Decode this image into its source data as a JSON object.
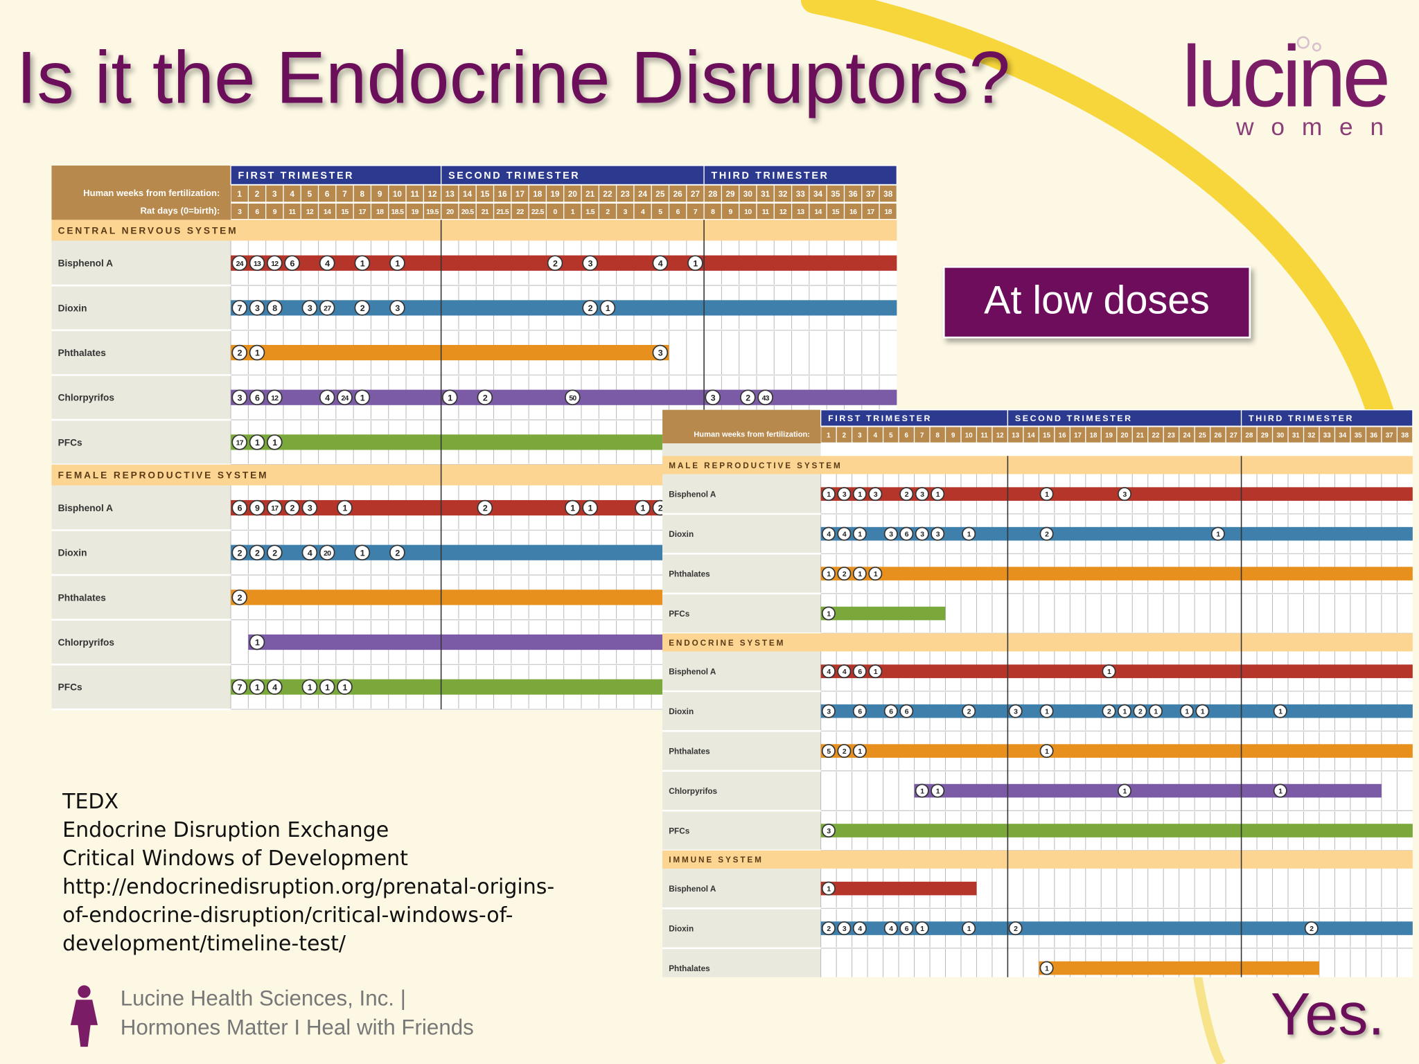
{
  "header": {
    "title": "Is it the Endocrine Disruptors?",
    "logo": "lucine",
    "logo_sub": "women"
  },
  "callout": "At low doses",
  "citation": [
    "TEDX",
    "Endocrine Disruption Exchange",
    "Critical Windows of Development",
    "http://endocrinedisruption.org/prenatal-origins-",
    "of-endocrine-disruption/critical-windows-of-",
    "development/timeline-test/"
  ],
  "footer": {
    "line1": "Lucine Health Sciences, Inc. |",
    "line2": "Hormones Matter I Heal with Friends"
  },
  "answer": "Yes.",
  "chart_data": [
    {
      "type": "timeline",
      "trimesters": [
        {
          "name": "FIRST TRIMESTER",
          "start": 1,
          "end": 12
        },
        {
          "name": "SECOND TRIMESTER",
          "start": 13,
          "end": 27
        },
        {
          "name": "THIRD TRIMESTER",
          "start": 28,
          "end": 38
        }
      ],
      "weeks_label": "Human weeks from fertilization:",
      "weeks": [
        1,
        2,
        3,
        4,
        5,
        6,
        7,
        8,
        9,
        10,
        11,
        12,
        13,
        14,
        15,
        16,
        17,
        18,
        19,
        20,
        21,
        22,
        23,
        24,
        25,
        26,
        27,
        28,
        29,
        30,
        31,
        32,
        33,
        34,
        35,
        36,
        37,
        38
      ],
      "rat_label": "Rat days (0=birth):",
      "rat_days": [
        3,
        6,
        9,
        11,
        12,
        14,
        15,
        17,
        18,
        18.5,
        19,
        19.5,
        20,
        20.5,
        21,
        21.5,
        22,
        22.5,
        0,
        1,
        1.5,
        2,
        3,
        4,
        5,
        6,
        7,
        8,
        9,
        10,
        11,
        12,
        13,
        14,
        15,
        16,
        17,
        18
      ],
      "sections": [
        {
          "name": "CENTRAL NERVOUS SYSTEM",
          "rows": [
            {
              "name": "Bisphenol A",
              "color": "#b5352a",
              "start": 1,
              "end": 38,
              "markers": [
                {
                  "week": 1,
                  "label": 24
                },
                {
                  "week": 2,
                  "label": 13
                },
                {
                  "week": 3,
                  "label": 12
                },
                {
                  "week": 4,
                  "label": 6
                },
                {
                  "week": 6,
                  "label": 4
                },
                {
                  "week": 8,
                  "label": 1
                },
                {
                  "week": 10,
                  "label": 1
                },
                {
                  "week": 19,
                  "label": 2
                },
                {
                  "week": 21,
                  "label": 3
                },
                {
                  "week": 25,
                  "label": 4
                },
                {
                  "week": 27,
                  "label": 1
                }
              ]
            },
            {
              "name": "Dioxin",
              "color": "#3f7fab",
              "start": 1,
              "end": 38,
              "markers": [
                {
                  "week": 1,
                  "label": 7
                },
                {
                  "week": 2,
                  "label": 3
                },
                {
                  "week": 3,
                  "label": 8
                },
                {
                  "week": 5,
                  "label": 3
                },
                {
                  "week": 6,
                  "label": 27
                },
                {
                  "week": 8,
                  "label": 2
                },
                {
                  "week": 10,
                  "label": 3
                },
                {
                  "week": 21,
                  "label": 2
                },
                {
                  "week": 22,
                  "label": 1
                }
              ]
            },
            {
              "name": "Phthalates",
              "color": "#e8901e",
              "start": 1,
              "end": 25,
              "markers": [
                {
                  "week": 1,
                  "label": 2
                },
                {
                  "week": 2,
                  "label": 1
                },
                {
                  "week": 25,
                  "label": 3
                }
              ]
            },
            {
              "name": "Chlorpyrifos",
              "color": "#7b5aa6",
              "start": 1,
              "end": 38,
              "markers": [
                {
                  "week": 1,
                  "label": 3
                },
                {
                  "week": 2,
                  "label": 6
                },
                {
                  "week": 3,
                  "label": 12
                },
                {
                  "week": 6,
                  "label": 4
                },
                {
                  "week": 7,
                  "label": 24
                },
                {
                  "week": 8,
                  "label": 1
                },
                {
                  "week": 13,
                  "label": 1
                },
                {
                  "week": 15,
                  "label": 2
                },
                {
                  "week": 20,
                  "label": 50
                },
                {
                  "week": 28,
                  "label": 3
                },
                {
                  "week": 30,
                  "label": 2
                },
                {
                  "week": 31,
                  "label": 43
                }
              ]
            },
            {
              "name": "PFCs",
              "color": "#7aa83a",
              "start": 1,
              "end": 38,
              "markers": [
                {
                  "week": 1,
                  "label": 17
                },
                {
                  "week": 2,
                  "label": 1
                },
                {
                  "week": 3,
                  "label": 1
                }
              ]
            }
          ]
        },
        {
          "name": "FEMALE REPRODUCTIVE SYSTEM",
          "rows": [
            {
              "name": "Bisphenol A",
              "color": "#b5352a",
              "start": 1,
              "end": 38,
              "markers": [
                {
                  "week": 1,
                  "label": 6
                },
                {
                  "week": 2,
                  "label": 9
                },
                {
                  "week": 3,
                  "label": 17
                },
                {
                  "week": 4,
                  "label": 2
                },
                {
                  "week": 5,
                  "label": 3
                },
                {
                  "week": 7,
                  "label": 1
                },
                {
                  "week": 15,
                  "label": 2
                },
                {
                  "week": 20,
                  "label": 1
                },
                {
                  "week": 21,
                  "label": 1
                },
                {
                  "week": 24,
                  "label": 1
                },
                {
                  "week": 25,
                  "label": 2
                }
              ]
            },
            {
              "name": "Dioxin",
              "color": "#3f7fab",
              "start": 1,
              "end": 38,
              "markers": [
                {
                  "week": 1,
                  "label": 2
                },
                {
                  "week": 2,
                  "label": 2
                },
                {
                  "week": 3,
                  "label": 2
                },
                {
                  "week": 5,
                  "label": 4
                },
                {
                  "week": 6,
                  "label": 20
                },
                {
                  "week": 8,
                  "label": 1
                },
                {
                  "week": 10,
                  "label": 2
                }
              ]
            },
            {
              "name": "Phthalates",
              "color": "#e8901e",
              "start": 1,
              "end": 38,
              "markers": [
                {
                  "week": 1,
                  "label": 2
                }
              ]
            },
            {
              "name": "Chlorpyrifos",
              "color": "#7b5aa6",
              "start": 2,
              "end": 38,
              "markers": [
                {
                  "week": 2,
                  "label": 1
                }
              ]
            },
            {
              "name": "PFCs",
              "color": "#7aa83a",
              "start": 1,
              "end": 38,
              "markers": [
                {
                  "week": 1,
                  "label": 7
                },
                {
                  "week": 2,
                  "label": 1
                },
                {
                  "week": 3,
                  "label": 4
                },
                {
                  "week": 5,
                  "label": 1
                },
                {
                  "week": 6,
                  "label": 1
                },
                {
                  "week": 7,
                  "label": 1
                }
              ]
            }
          ]
        }
      ]
    },
    {
      "type": "timeline",
      "trimesters": [
        {
          "name": "FIRST TRIMESTER",
          "start": 1,
          "end": 12
        },
        {
          "name": "SECOND TRIMESTER",
          "start": 13,
          "end": 27
        },
        {
          "name": "THIRD TRIMESTER",
          "start": 28,
          "end": 38
        }
      ],
      "weeks_label": "Human weeks from fertilization:",
      "weeks": [
        1,
        2,
        3,
        4,
        5,
        6,
        7,
        8,
        9,
        10,
        11,
        12,
        13,
        14,
        15,
        16,
        17,
        18,
        19,
        20,
        21,
        22,
        23,
        24,
        25,
        26,
        27,
        28,
        29,
        30,
        31,
        32,
        33,
        34,
        35,
        36,
        37,
        38
      ],
      "sections": [
        {
          "name": "MALE REPRODUCTIVE SYSTEM",
          "rows": [
            {
              "name": "Bisphenol A",
              "color": "#b5352a",
              "start": 1,
              "end": 38,
              "markers": [
                {
                  "week": 1,
                  "label": 1
                },
                {
                  "week": 2,
                  "label": 3
                },
                {
                  "week": 3,
                  "label": 1
                },
                {
                  "week": 4,
                  "label": 3
                },
                {
                  "week": 6,
                  "label": 2
                },
                {
                  "week": 7,
                  "label": 3
                },
                {
                  "week": 8,
                  "label": 1
                },
                {
                  "week": 15,
                  "label": 1
                },
                {
                  "week": 20,
                  "label": 3
                }
              ]
            },
            {
              "name": "Dioxin",
              "color": "#3f7fab",
              "start": 1,
              "end": 38,
              "markers": [
                {
                  "week": 1,
                  "label": 4
                },
                {
                  "week": 2,
                  "label": 4
                },
                {
                  "week": 3,
                  "label": 1
                },
                {
                  "week": 5,
                  "label": 3
                },
                {
                  "week": 6,
                  "label": 6
                },
                {
                  "week": 7,
                  "label": 3
                },
                {
                  "week": 8,
                  "label": 3
                },
                {
                  "week": 10,
                  "label": 1
                },
                {
                  "week": 15,
                  "label": 2
                },
                {
                  "week": 26,
                  "label": 1
                }
              ]
            },
            {
              "name": "Phthalates",
              "color": "#e8901e",
              "start": 1,
              "end": 38,
              "markers": [
                {
                  "week": 1,
                  "label": 1
                },
                {
                  "week": 2,
                  "label": 2
                },
                {
                  "week": 3,
                  "label": 1
                },
                {
                  "week": 4,
                  "label": 1
                }
              ]
            },
            {
              "name": "PFCs",
              "color": "#7aa83a",
              "start": 1,
              "end": 8,
              "markers": [
                {
                  "week": 1,
                  "label": 1
                }
              ]
            }
          ]
        },
        {
          "name": "ENDOCRINE SYSTEM",
          "rows": [
            {
              "name": "Bisphenol A",
              "color": "#b5352a",
              "start": 1,
              "end": 38,
              "markers": [
                {
                  "week": 1,
                  "label": 4
                },
                {
                  "week": 2,
                  "label": 4
                },
                {
                  "week": 3,
                  "label": 6
                },
                {
                  "week": 4,
                  "label": 1
                },
                {
                  "week": 19,
                  "label": 1
                }
              ]
            },
            {
              "name": "Dioxin",
              "color": "#3f7fab",
              "start": 1,
              "end": 38,
              "markers": [
                {
                  "week": 1,
                  "label": 3
                },
                {
                  "week": 3,
                  "label": 6
                },
                {
                  "week": 5,
                  "label": 6
                },
                {
                  "week": 6,
                  "label": 6
                },
                {
                  "week": 10,
                  "label": 2
                },
                {
                  "week": 13,
                  "label": 3
                },
                {
                  "week": 15,
                  "label": 1
                },
                {
                  "week": 19,
                  "label": 2
                },
                {
                  "week": 20,
                  "label": 1
                },
                {
                  "week": 21,
                  "label": 2
                },
                {
                  "week": 22,
                  "label": 1
                },
                {
                  "week": 24,
                  "label": 1
                },
                {
                  "week": 25,
                  "label": 1
                },
                {
                  "week": 30,
                  "label": 1
                }
              ]
            },
            {
              "name": "Phthalates",
              "color": "#e8901e",
              "start": 1,
              "end": 38,
              "markers": [
                {
                  "week": 1,
                  "label": 5
                },
                {
                  "week": 2,
                  "label": 2
                },
                {
                  "week": 3,
                  "label": 1
                },
                {
                  "week": 15,
                  "label": 1
                }
              ]
            },
            {
              "name": "Chlorpyrifos",
              "color": "#7b5aa6",
              "start": 7,
              "end": 36,
              "markers": [
                {
                  "week": 7,
                  "label": 1
                },
                {
                  "week": 8,
                  "label": 1
                },
                {
                  "week": 20,
                  "label": 1
                },
                {
                  "week": 30,
                  "label": 1
                }
              ]
            },
            {
              "name": "PFCs",
              "color": "#7aa83a",
              "start": 1,
              "end": 38,
              "markers": [
                {
                  "week": 1,
                  "label": 3
                }
              ]
            }
          ]
        },
        {
          "name": "IMMUNE SYSTEM",
          "rows": [
            {
              "name": "Bisphenol A",
              "color": "#b5352a",
              "start": 1,
              "end": 10,
              "markers": [
                {
                  "week": 1,
                  "label": 1
                }
              ]
            },
            {
              "name": "Dioxin",
              "color": "#3f7fab",
              "start": 1,
              "end": 38,
              "markers": [
                {
                  "week": 1,
                  "label": 2
                },
                {
                  "week": 2,
                  "label": 3
                },
                {
                  "week": 3,
                  "label": 4
                },
                {
                  "week": 5,
                  "label": 4
                },
                {
                  "week": 6,
                  "label": 6
                },
                {
                  "week": 7,
                  "label": 1
                },
                {
                  "week": 10,
                  "label": 1
                },
                {
                  "week": 13,
                  "label": 2
                },
                {
                  "week": 32,
                  "label": 2
                }
              ]
            },
            {
              "name": "Phthalates",
              "color": "#e8901e",
              "start": 15,
              "end": 32,
              "markers": [
                {
                  "week": 15,
                  "label": 1
                }
              ]
            }
          ]
        }
      ]
    }
  ]
}
